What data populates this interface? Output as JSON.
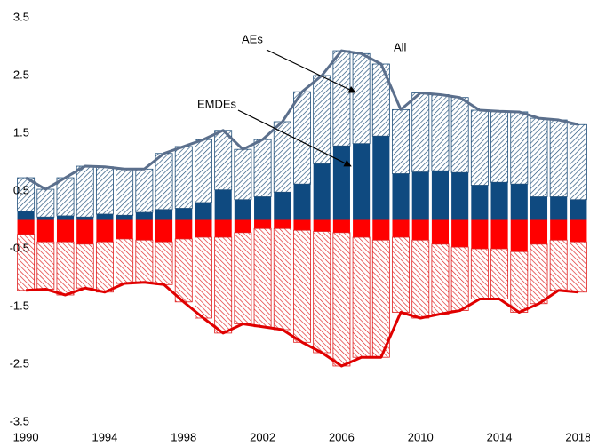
{
  "chart_data": {
    "type": "bar",
    "x": [
      1990,
      1991,
      1992,
      1993,
      1994,
      1995,
      1996,
      1997,
      1998,
      1999,
      2000,
      2001,
      2002,
      2003,
      2004,
      2005,
      2006,
      2007,
      2008,
      2009,
      2010,
      2011,
      2012,
      2013,
      2014,
      2015,
      2016,
      2017,
      2018
    ],
    "xlim": [
      1989.5,
      2018.5
    ],
    "xticks": [
      1990,
      1994,
      1998,
      2002,
      2006,
      2010,
      2014,
      2018
    ],
    "ylim": [
      -3.5,
      3.5
    ],
    "yticks": [
      -3.5,
      -2.5,
      -1.5,
      -0.5,
      0.5,
      1.5,
      2.5,
      3.5
    ],
    "grid": false,
    "series": [
      {
        "style": "solid",
        "color": "#0f4a80",
        "values": [
          0.15,
          0.05,
          0.07,
          0.05,
          0.1,
          0.08,
          0.13,
          0.18,
          0.2,
          0.3,
          0.52,
          0.35,
          0.4,
          0.48,
          0.62,
          0.97,
          1.28,
          1.32,
          1.45,
          0.8,
          0.83,
          0.85,
          0.82,
          0.6,
          0.65,
          0.62,
          0.4,
          0.4,
          0.35
        ]
      },
      {
        "style": "hatched",
        "color": "#1f4e79",
        "values": [
          0.58,
          0.48,
          0.66,
          0.88,
          0.82,
          0.8,
          0.75,
          0.97,
          1.07,
          1.09,
          1.03,
          0.87,
          0.99,
          1.22,
          1.6,
          1.53,
          1.65,
          1.56,
          1.25,
          1.11,
          1.37,
          1.32,
          1.3,
          1.3,
          1.23,
          1.25,
          1.36,
          1.33,
          1.3
        ]
      },
      {
        "style": "line",
        "color": "#5b6f8c",
        "values": [
          0.73,
          0.53,
          0.73,
          0.93,
          0.92,
          0.88,
          0.88,
          1.15,
          1.27,
          1.39,
          1.55,
          1.22,
          1.39,
          1.7,
          2.22,
          2.5,
          2.93,
          2.88,
          2.7,
          1.91,
          2.2,
          2.17,
          2.12,
          1.9,
          1.88,
          1.87,
          1.76,
          1.73,
          1.65
        ]
      },
      {
        "style": "solid",
        "color": "#ff0000",
        "values": [
          -0.25,
          -0.38,
          -0.38,
          -0.42,
          -0.38,
          -0.33,
          -0.35,
          -0.38,
          -0.33,
          -0.3,
          -0.3,
          -0.22,
          -0.15,
          -0.15,
          -0.18,
          -0.2,
          -0.22,
          -0.3,
          -0.35,
          -0.3,
          -0.35,
          -0.42,
          -0.47,
          -0.5,
          -0.5,
          -0.55,
          -0.42,
          -0.35,
          -0.38
        ]
      },
      {
        "style": "hatched",
        "color": "#e02020",
        "values": [
          -0.97,
          -0.82,
          -0.92,
          -0.76,
          -0.87,
          -0.77,
          -0.73,
          -0.74,
          -1.09,
          -1.4,
          -1.66,
          -1.58,
          -1.7,
          -1.75,
          -1.94,
          -2.1,
          -2.31,
          -2.08,
          -2.03,
          -1.3,
          -1.35,
          -1.21,
          -1.1,
          -0.87,
          -0.87,
          -1.05,
          -1.03,
          -0.87,
          -0.87
        ]
      },
      {
        "style": "line",
        "color": "#e00000",
        "values": [
          -1.22,
          -1.2,
          -1.3,
          -1.18,
          -1.25,
          -1.1,
          -1.08,
          -1.12,
          -1.42,
          -1.7,
          -1.96,
          -1.8,
          -1.85,
          -1.9,
          -2.12,
          -2.3,
          -2.53,
          -2.38,
          -2.38,
          -1.6,
          -1.7,
          -1.63,
          -1.57,
          -1.37,
          -1.37,
          -1.6,
          -1.45,
          -1.22,
          -1.25
        ]
      }
    ],
    "annotations": [
      {
        "text": "AEs"
      },
      {
        "text": "EMDEs"
      },
      {
        "text": "All"
      }
    ]
  }
}
